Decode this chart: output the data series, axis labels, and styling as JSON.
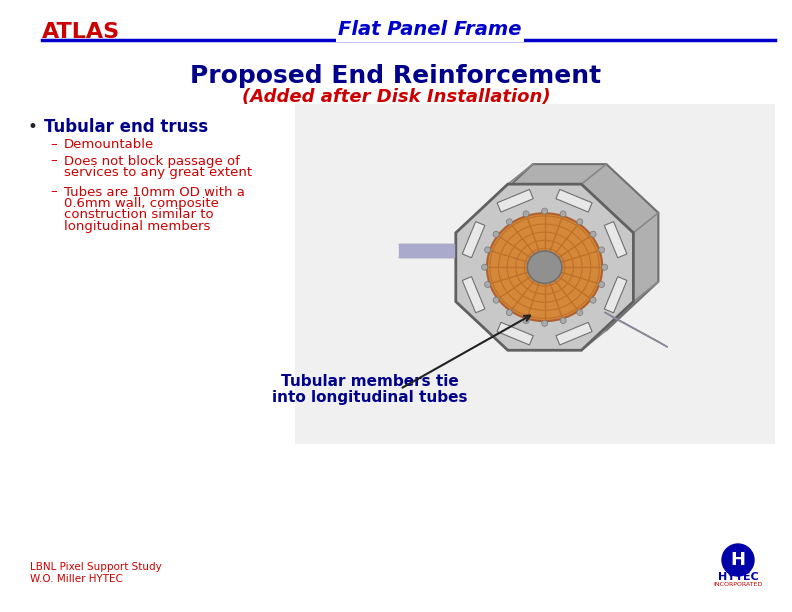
{
  "bg_color": "#ffffff",
  "atlas_text": "ATLAS",
  "atlas_color": "#cc0000",
  "atlas_fontsize": 16,
  "header_line_color": "#0000cc",
  "header_text": "Flat Panel Frame",
  "header_text_color": "#0000cc",
  "header_fontsize": 14,
  "title1": "Proposed End Reinforcement",
  "title1_color": "#00008B",
  "title1_fontsize": 18,
  "title2": "(Added after Disk Installation)",
  "title2_color": "#cc0000",
  "title2_fontsize": 13,
  "bullet_text": "Tubular end truss",
  "bullet_color": "#00008B",
  "bullet_fontsize": 12,
  "sub_bullet_color": "#cc0000",
  "sub_bullet_fontsize": 9.5,
  "sub1": "Demountable",
  "sub2_line1": "Does not block passage of",
  "sub2_line2": "services to any great extent",
  "sub3_line1": "Tubes are 10mm OD with a",
  "sub3_line2": "0.6mm wall, composite",
  "sub3_line3": "construction similar to",
  "sub3_line4": "longitudinal members",
  "annot_text_line1": "Tubular members tie",
  "annot_text_line2": "into longitudinal tubes",
  "annot_color": "#00008B",
  "annot_fontsize": 11,
  "footer1": "LBNL Pixel Support Study",
  "footer2": "W.O. Miller HYTEC",
  "footer_color": "#cc0000",
  "footer_fontsize": 7.5,
  "hytec_color": "#0000aa",
  "hytec_text": "HYTEC",
  "hytec_sub": "INCORPORATED"
}
